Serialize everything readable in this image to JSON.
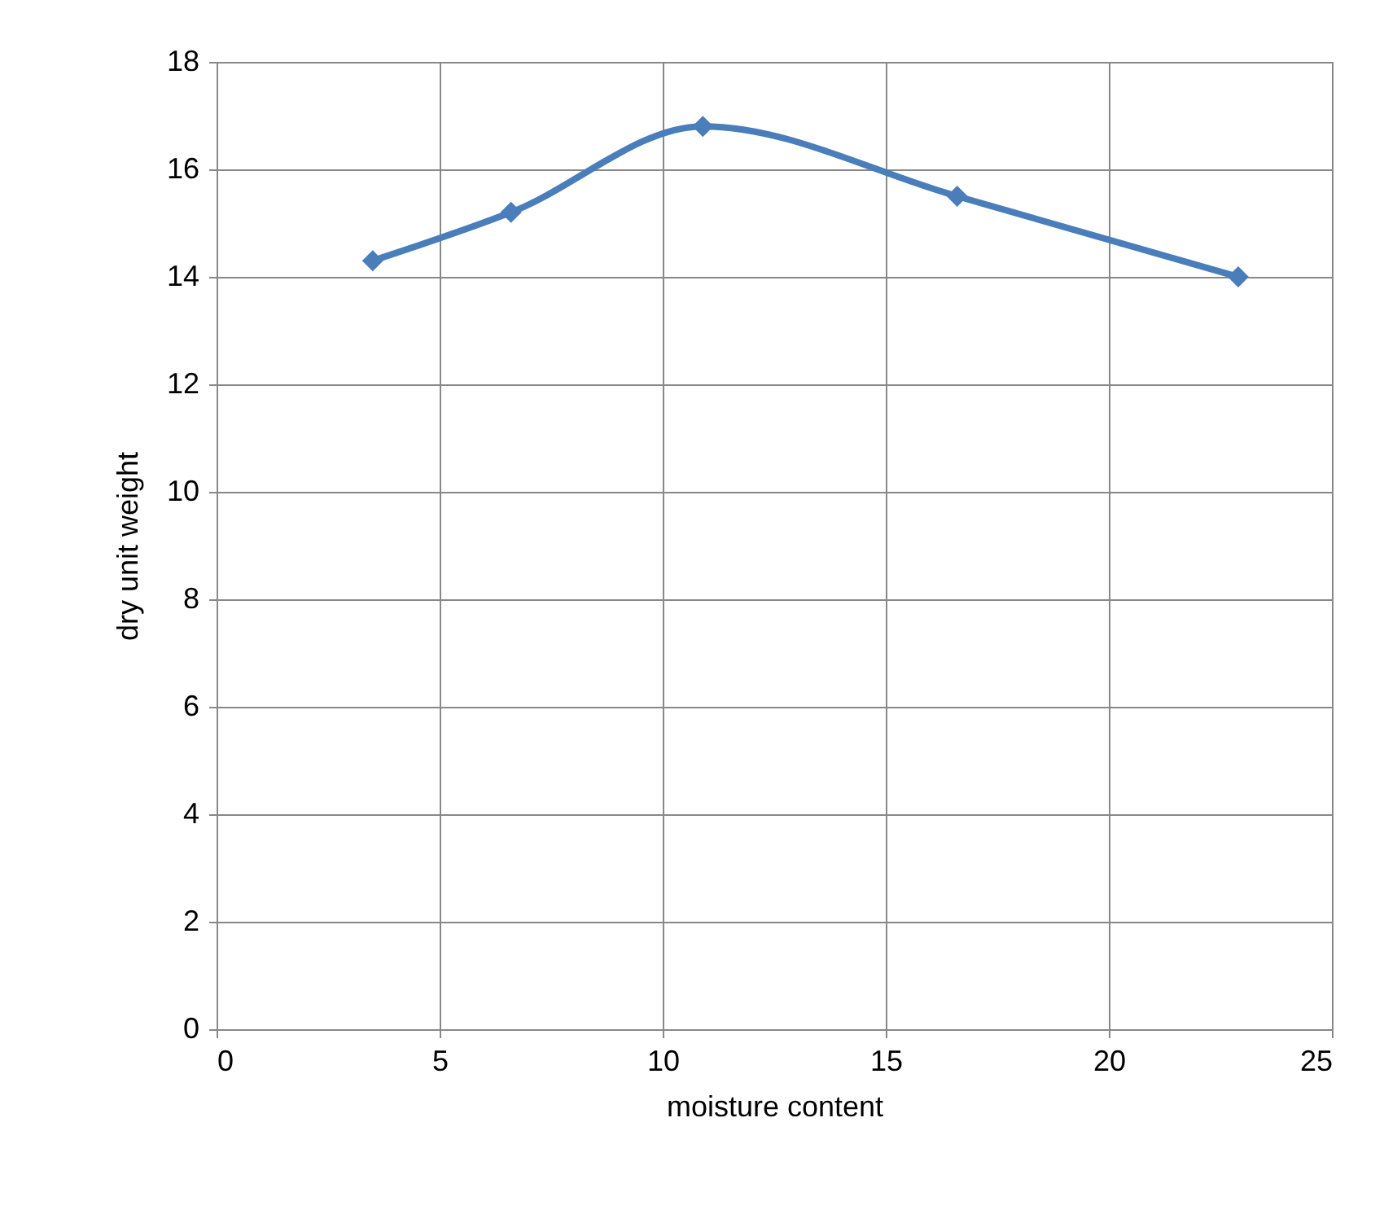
{
  "chart_data": {
    "type": "line",
    "xlabel": "moisture content",
    "ylabel": "dry unit weight",
    "x": [
      3.5,
      6.6,
      10.9,
      16.6,
      22.9
    ],
    "series": [
      {
        "color": "#4a7ebb",
        "values": [
          14.3,
          15.2,
          16.8,
          15.5,
          14.0
        ]
      }
    ],
    "xlim": [
      0,
      25
    ],
    "xticks": [
      0,
      5,
      10,
      15,
      20,
      25
    ],
    "ylim": [
      0,
      18
    ],
    "yticks": [
      0,
      2,
      4,
      6,
      8,
      10,
      12,
      14,
      16,
      18
    ],
    "grid": true,
    "marker": "diamond",
    "line_style": "solid"
  }
}
